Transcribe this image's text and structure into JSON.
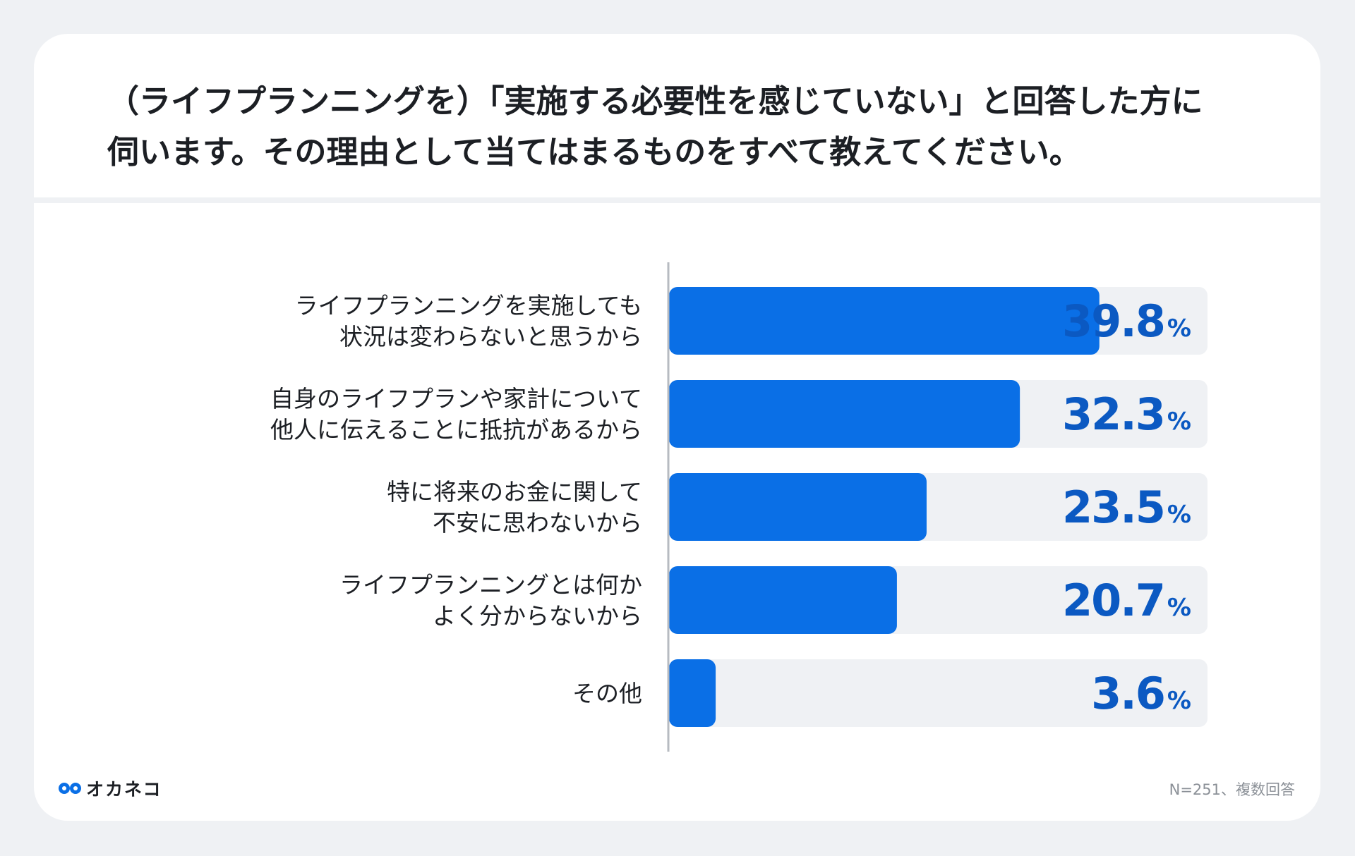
{
  "title": {
    "line1": "（ライフプランニングを）「実施する必要性を感じていない」と回答した方に",
    "line2": "伺います。その理由として当てはまるものをすべて教えてください。"
  },
  "chart_data": {
    "type": "bar",
    "orientation": "horizontal",
    "categories": [
      [
        "ライフプランニングを実施しても",
        "状況は変わらないと思うから"
      ],
      [
        "自身のライフプランや家計について",
        "他人に伝えることに抵抗があるから"
      ],
      [
        "特に将来のお金に関して",
        "不安に思わないから"
      ],
      [
        "ライフプランニングとは何か",
        "よく分からないから"
      ],
      [
        "その他"
      ]
    ],
    "values": [
      39.8,
      32.3,
      23.5,
      20.7,
      3.6
    ],
    "value_labels": [
      "39.8",
      "32.3",
      "23.5",
      "20.7",
      "3.6"
    ],
    "unit": "%",
    "xlim": [
      0,
      50
    ],
    "grid": false,
    "colors": {
      "bar": "#0a6fe6",
      "track": "#eff1f4",
      "value": "#0b59c2",
      "axis": "#b7bbc1",
      "label": "#1c1f24"
    }
  },
  "footer": {
    "brand": "オカネコ",
    "note": "N=251、複数回答"
  }
}
